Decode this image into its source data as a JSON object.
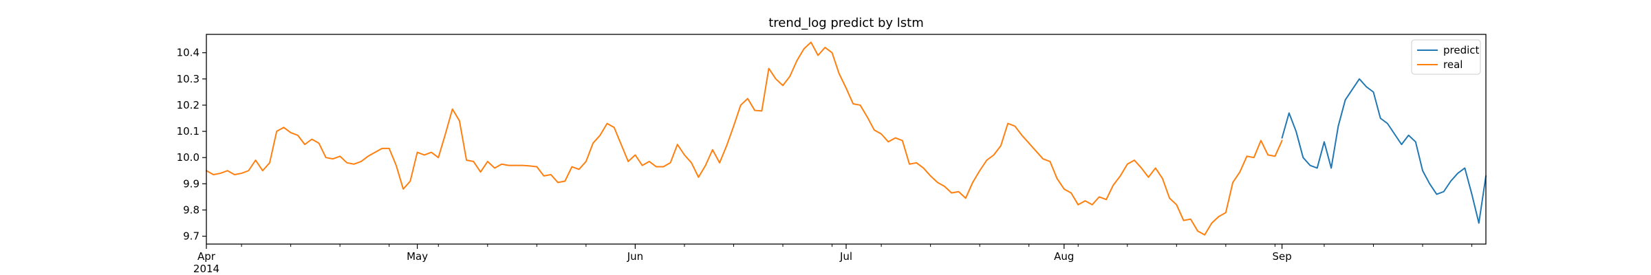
{
  "chart_data": {
    "type": "line",
    "title": "trend_log predict by lstm",
    "xlabel": "",
    "ylabel": "",
    "x_axis": {
      "type": "date",
      "start": "2014-04-01",
      "end": "2014-09-30",
      "tick_labels": [
        {
          "date": "2014-04-01",
          "label": "Apr",
          "sublabel": "2014"
        },
        {
          "date": "2014-05-01",
          "label": "May",
          "sublabel": ""
        },
        {
          "date": "2014-06-01",
          "label": "Jun",
          "sublabel": ""
        },
        {
          "date": "2014-07-01",
          "label": "Jul",
          "sublabel": ""
        },
        {
          "date": "2014-08-01",
          "label": "Aug",
          "sublabel": ""
        },
        {
          "date": "2014-09-01",
          "label": "Sep",
          "sublabel": ""
        }
      ]
    },
    "y_axis": {
      "ylim": [
        9.67,
        10.47
      ],
      "ticks": [
        9.7,
        9.8,
        9.9,
        10.0,
        10.1,
        10.2,
        10.3,
        10.4
      ],
      "tick_labels": [
        "9.7",
        "9.8",
        "9.9",
        "10.0",
        "10.1",
        "10.2",
        "10.3",
        "10.4"
      ]
    },
    "grid": false,
    "legend_position": "top-right",
    "series": [
      {
        "name": "predict",
        "color": "#1f77b4",
        "points": [
          [
            "2014-09-01",
            10.075
          ],
          [
            "2014-09-02",
            10.17
          ],
          [
            "2014-09-03",
            10.1
          ],
          [
            "2014-09-04",
            10.0
          ],
          [
            "2014-09-05",
            9.97
          ],
          [
            "2014-09-06",
            9.96
          ],
          [
            "2014-09-07",
            10.06
          ],
          [
            "2014-09-08",
            9.96
          ],
          [
            "2014-09-09",
            10.12
          ],
          [
            "2014-09-10",
            10.22
          ],
          [
            "2014-09-11",
            10.26
          ],
          [
            "2014-09-12",
            10.3
          ],
          [
            "2014-09-13",
            10.27
          ],
          [
            "2014-09-14",
            10.25
          ],
          [
            "2014-09-15",
            10.15
          ],
          [
            "2014-09-16",
            10.13
          ],
          [
            "2014-09-17",
            10.09
          ],
          [
            "2014-09-18",
            10.05
          ],
          [
            "2014-09-19",
            10.085
          ],
          [
            "2014-09-20",
            10.06
          ],
          [
            "2014-09-21",
            9.95
          ],
          [
            "2014-09-22",
            9.9
          ],
          [
            "2014-09-23",
            9.86
          ],
          [
            "2014-09-24",
            9.87
          ],
          [
            "2014-09-25",
            9.91
          ],
          [
            "2014-09-26",
            9.94
          ],
          [
            "2014-09-27",
            9.96
          ],
          [
            "2014-09-28",
            9.86
          ],
          [
            "2014-09-29",
            9.75
          ],
          [
            "2014-09-30",
            9.93
          ]
        ]
      },
      {
        "name": "real",
        "color": "#ff7f0e",
        "points": [
          [
            "2014-04-01",
            9.95
          ],
          [
            "2014-04-02",
            9.935
          ],
          [
            "2014-04-03",
            9.94
          ],
          [
            "2014-04-04",
            9.95
          ],
          [
            "2014-04-05",
            9.935
          ],
          [
            "2014-04-06",
            9.94
          ],
          [
            "2014-04-07",
            9.95
          ],
          [
            "2014-04-08",
            9.99
          ],
          [
            "2014-04-09",
            9.95
          ],
          [
            "2014-04-10",
            9.98
          ],
          [
            "2014-04-11",
            10.1
          ],
          [
            "2014-04-12",
            10.115
          ],
          [
            "2014-04-13",
            10.095
          ],
          [
            "2014-04-14",
            10.085
          ],
          [
            "2014-04-15",
            10.05
          ],
          [
            "2014-04-16",
            10.07
          ],
          [
            "2014-04-17",
            10.055
          ],
          [
            "2014-04-18",
            10.0
          ],
          [
            "2014-04-19",
            9.995
          ],
          [
            "2014-04-20",
            10.005
          ],
          [
            "2014-04-21",
            9.98
          ],
          [
            "2014-04-22",
            9.975
          ],
          [
            "2014-04-23",
            9.985
          ],
          [
            "2014-04-24",
            10.005
          ],
          [
            "2014-04-25",
            10.02
          ],
          [
            "2014-04-26",
            10.035
          ],
          [
            "2014-04-27",
            10.035
          ],
          [
            "2014-04-28",
            9.97
          ],
          [
            "2014-04-29",
            9.88
          ],
          [
            "2014-04-30",
            9.91
          ],
          [
            "2014-05-01",
            10.02
          ],
          [
            "2014-05-02",
            10.01
          ],
          [
            "2014-05-03",
            10.02
          ],
          [
            "2014-05-04",
            10.0
          ],
          [
            "2014-05-05",
            10.09
          ],
          [
            "2014-05-06",
            10.185
          ],
          [
            "2014-05-07",
            10.14
          ],
          [
            "2014-05-08",
            9.99
          ],
          [
            "2014-05-09",
            9.985
          ],
          [
            "2014-05-10",
            9.945
          ],
          [
            "2014-05-11",
            9.985
          ],
          [
            "2014-05-12",
            9.96
          ],
          [
            "2014-05-13",
            9.975
          ],
          [
            "2014-05-14",
            9.97
          ],
          [
            "2014-05-15",
            9.97
          ],
          [
            "2014-05-16",
            9.97
          ],
          [
            "2014-05-17",
            9.968
          ],
          [
            "2014-05-18",
            9.965
          ],
          [
            "2014-05-19",
            9.93
          ],
          [
            "2014-05-20",
            9.935
          ],
          [
            "2014-05-21",
            9.905
          ],
          [
            "2014-05-22",
            9.91
          ],
          [
            "2014-05-23",
            9.965
          ],
          [
            "2014-05-24",
            9.955
          ],
          [
            "2014-05-25",
            9.985
          ],
          [
            "2014-05-26",
            10.055
          ],
          [
            "2014-05-27",
            10.085
          ],
          [
            "2014-05-28",
            10.13
          ],
          [
            "2014-05-29",
            10.115
          ],
          [
            "2014-05-30",
            10.05
          ],
          [
            "2014-05-31",
            9.985
          ],
          [
            "2014-06-01",
            10.01
          ],
          [
            "2014-06-02",
            9.97
          ],
          [
            "2014-06-03",
            9.985
          ],
          [
            "2014-06-04",
            9.965
          ],
          [
            "2014-06-05",
            9.965
          ],
          [
            "2014-06-06",
            9.98
          ],
          [
            "2014-06-07",
            10.05
          ],
          [
            "2014-06-08",
            10.01
          ],
          [
            "2014-06-09",
            9.98
          ],
          [
            "2014-06-10",
            9.925
          ],
          [
            "2014-06-11",
            9.97
          ],
          [
            "2014-06-12",
            10.03
          ],
          [
            "2014-06-13",
            9.98
          ],
          [
            "2014-06-14",
            10.045
          ],
          [
            "2014-06-15",
            10.12
          ],
          [
            "2014-06-16",
            10.2
          ],
          [
            "2014-06-17",
            10.225
          ],
          [
            "2014-06-18",
            10.18
          ],
          [
            "2014-06-19",
            10.178
          ],
          [
            "2014-06-20",
            10.34
          ],
          [
            "2014-06-21",
            10.3
          ],
          [
            "2014-06-22",
            10.275
          ],
          [
            "2014-06-23",
            10.31
          ],
          [
            "2014-06-24",
            10.37
          ],
          [
            "2014-06-25",
            10.415
          ],
          [
            "2014-06-26",
            10.44
          ],
          [
            "2014-06-27",
            10.39
          ],
          [
            "2014-06-28",
            10.42
          ],
          [
            "2014-06-29",
            10.4
          ],
          [
            "2014-06-30",
            10.32
          ],
          [
            "2014-07-01",
            10.265
          ],
          [
            "2014-07-02",
            10.205
          ],
          [
            "2014-07-03",
            10.2
          ],
          [
            "2014-07-04",
            10.155
          ],
          [
            "2014-07-05",
            10.105
          ],
          [
            "2014-07-06",
            10.09
          ],
          [
            "2014-07-07",
            10.06
          ],
          [
            "2014-07-08",
            10.075
          ],
          [
            "2014-07-09",
            10.065
          ],
          [
            "2014-07-10",
            9.975
          ],
          [
            "2014-07-11",
            9.98
          ],
          [
            "2014-07-12",
            9.96
          ],
          [
            "2014-07-13",
            9.93
          ],
          [
            "2014-07-14",
            9.905
          ],
          [
            "2014-07-15",
            9.89
          ],
          [
            "2014-07-16",
            9.865
          ],
          [
            "2014-07-17",
            9.87
          ],
          [
            "2014-07-18",
            9.845
          ],
          [
            "2014-07-19",
            9.905
          ],
          [
            "2014-07-20",
            9.95
          ],
          [
            "2014-07-21",
            9.99
          ],
          [
            "2014-07-22",
            10.01
          ],
          [
            "2014-07-23",
            10.045
          ],
          [
            "2014-07-24",
            10.13
          ],
          [
            "2014-07-25",
            10.12
          ],
          [
            "2014-07-26",
            10.085
          ],
          [
            "2014-07-27",
            10.055
          ],
          [
            "2014-07-28",
            10.025
          ],
          [
            "2014-07-29",
            9.995
          ],
          [
            "2014-07-30",
            9.985
          ],
          [
            "2014-07-31",
            9.92
          ],
          [
            "2014-08-01",
            9.88
          ],
          [
            "2014-08-02",
            9.865
          ],
          [
            "2014-08-03",
            9.82
          ],
          [
            "2014-08-04",
            9.835
          ],
          [
            "2014-08-05",
            9.82
          ],
          [
            "2014-08-06",
            9.85
          ],
          [
            "2014-08-07",
            9.84
          ],
          [
            "2014-08-08",
            9.895
          ],
          [
            "2014-08-09",
            9.93
          ],
          [
            "2014-08-10",
            9.975
          ],
          [
            "2014-08-11",
            9.99
          ],
          [
            "2014-08-12",
            9.96
          ],
          [
            "2014-08-13",
            9.925
          ],
          [
            "2014-08-14",
            9.96
          ],
          [
            "2014-08-15",
            9.92
          ],
          [
            "2014-08-16",
            9.845
          ],
          [
            "2014-08-17",
            9.82
          ],
          [
            "2014-08-18",
            9.76
          ],
          [
            "2014-08-19",
            9.765
          ],
          [
            "2014-08-20",
            9.72
          ],
          [
            "2014-08-21",
            9.705
          ],
          [
            "2014-08-22",
            9.75
          ],
          [
            "2014-08-23",
            9.775
          ],
          [
            "2014-08-24",
            9.79
          ],
          [
            "2014-08-25",
            9.905
          ],
          [
            "2014-08-26",
            9.945
          ],
          [
            "2014-08-27",
            10.005
          ],
          [
            "2014-08-28",
            10.0
          ],
          [
            "2014-08-29",
            10.065
          ],
          [
            "2014-08-30",
            10.01
          ],
          [
            "2014-08-31",
            10.005
          ],
          [
            "2014-09-01",
            10.065
          ]
        ]
      }
    ]
  }
}
